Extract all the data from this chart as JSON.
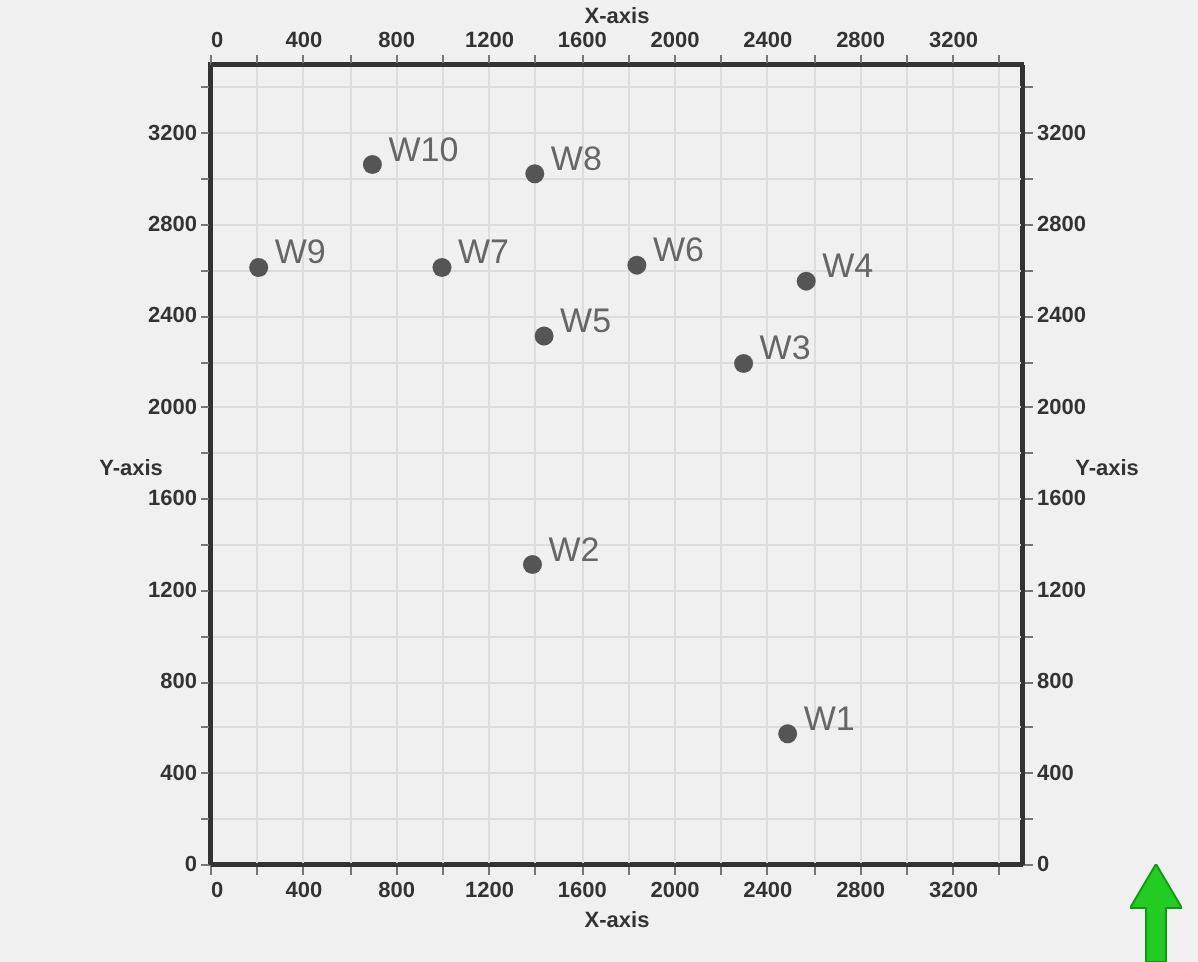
{
  "chart_data": {
    "type": "scatter",
    "xlabel": "X-axis",
    "x2label": "X-axis",
    "ylabel": "Y-axis",
    "y2label": "Y-axis",
    "x": [
      2490,
      1390,
      2300,
      2570,
      1440,
      1840,
      1000,
      1400,
      210,
      700
    ],
    "values": [
      570,
      1310,
      2190,
      2550,
      2310,
      2620,
      2610,
      3020,
      2610,
      3060
    ],
    "color": "#555555",
    "marker": "circle",
    "grid": true,
    "xlim": [
      0,
      3500
    ],
    "ylim": [
      0,
      3500
    ],
    "x2lim": [
      0,
      3500
    ],
    "y2lim": [
      0,
      3500
    ],
    "xticks": [
      0,
      {
        "value": 200,
        "label": null
      },
      400,
      {
        "value": 600,
        "label": null
      },
      800,
      {
        "value": 1000,
        "label": null
      },
      1200,
      {
        "value": 1400,
        "label": null
      },
      1600,
      {
        "value": 1800,
        "label": null
      },
      2000,
      {
        "value": 2200,
        "label": null
      },
      2400,
      {
        "value": 2600,
        "label": null
      },
      2800,
      {
        "value": 3000,
        "label": null
      },
      3200,
      {
        "value": 3400,
        "label": null
      }
    ],
    "x2ticks": [
      0,
      {
        "value": 200,
        "label": null
      },
      400,
      {
        "value": 600,
        "label": null
      },
      800,
      {
        "value": 1000,
        "label": null
      },
      1200,
      {
        "value": 1400,
        "label": null
      },
      1600,
      {
        "value": 1800,
        "label": null
      },
      2000,
      {
        "value": 2200,
        "label": null
      },
      2400,
      {
        "value": 2600,
        "label": null
      },
      2800,
      {
        "value": 3000,
        "label": null
      },
      3200,
      {
        "value": 3400,
        "label": null
      }
    ],
    "yticks": [
      0,
      {
        "value": 200,
        "label": null
      },
      400,
      {
        "value": 600,
        "label": null
      },
      800,
      {
        "value": 1000,
        "label": null
      },
      1200,
      {
        "value": 1400,
        "label": null
      },
      1600,
      {
        "value": 1800,
        "label": null
      },
      2000,
      {
        "value": 2200,
        "label": null
      },
      2400,
      {
        "value": 2600,
        "label": null
      },
      2800,
      {
        "value": 3000,
        "label": null
      },
      3200,
      {
        "value": 3400,
        "label": null
      }
    ],
    "y2ticks": [
      0,
      {
        "value": 200,
        "label": null
      },
      400,
      {
        "value": 600,
        "label": null
      },
      800,
      {
        "value": 1000,
        "label": null
      },
      1200,
      {
        "value": 1400,
        "label": null
      },
      1600,
      {
        "value": 1800,
        "label": null
      },
      2000,
      {
        "value": 2200,
        "label": null
      },
      2400,
      {
        "value": 2600,
        "label": null
      },
      2800,
      {
        "value": 3000,
        "label": null
      },
      3200,
      {
        "value": 3400,
        "label": null
      }
    ],
    "annotations": [
      {
        "text": "W1",
        "x": 2490,
        "y": 570
      },
      {
        "text": "W2",
        "x": 1390,
        "y": 1310
      },
      {
        "text": "W3",
        "x": 2300,
        "y": 2190
      },
      {
        "text": "W4",
        "x": 2570,
        "y": 2550
      },
      {
        "text": "W5",
        "x": 1440,
        "y": 2310
      },
      {
        "text": "W6",
        "x": 1840,
        "y": 2620
      },
      {
        "text": "W7",
        "x": 1000,
        "y": 2610
      },
      {
        "text": "W8",
        "x": 1400,
        "y": 3020
      },
      {
        "text": "W9",
        "x": 210,
        "y": 2610
      },
      {
        "text": "W10",
        "x": 700,
        "y": 3060
      }
    ]
  }
}
